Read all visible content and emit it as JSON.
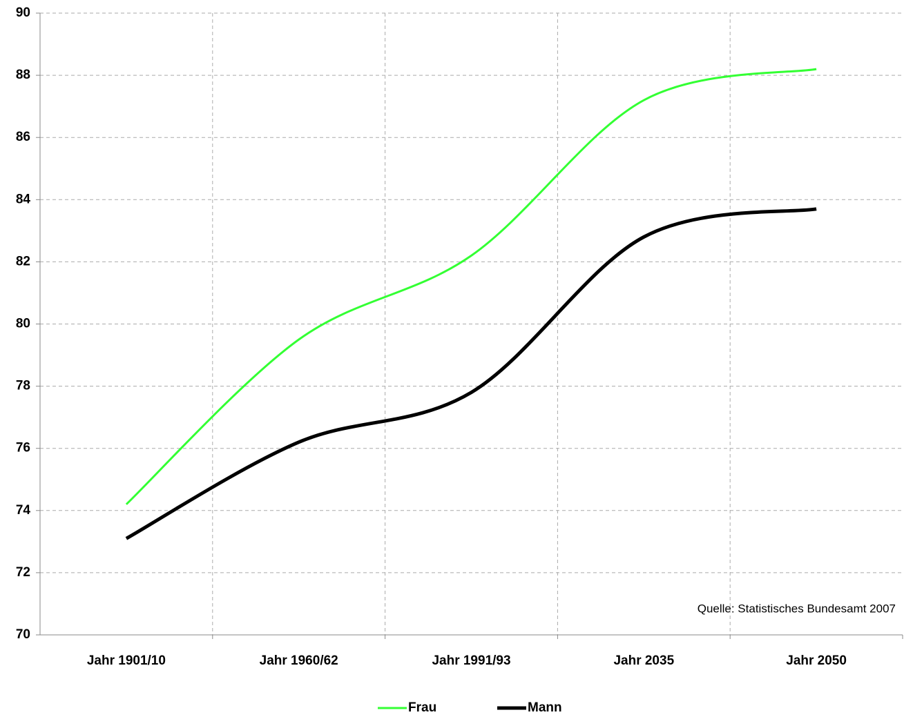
{
  "chart_data": {
    "type": "line",
    "categories": [
      "Jahr 1901/10",
      "Jahr 1960/62",
      "Jahr 1991/93",
      "Jahr 2035",
      "Jahr 2050"
    ],
    "series": [
      {
        "name": "Frau",
        "color": "#33ff33",
        "values": [
          74.2,
          79.5,
          82.2,
          87.2,
          88.2
        ]
      },
      {
        "name": "Mann",
        "color": "#000000",
        "values": [
          73.1,
          76.2,
          77.8,
          82.8,
          83.7
        ]
      }
    ],
    "ylim": [
      70,
      90
    ],
    "yticks": [
      70,
      72,
      74,
      76,
      78,
      80,
      82,
      84,
      86,
      88,
      90
    ],
    "grid": true,
    "legend": "bottom",
    "annotation": "Quelle: Statistisches Bundesamt 2007"
  }
}
